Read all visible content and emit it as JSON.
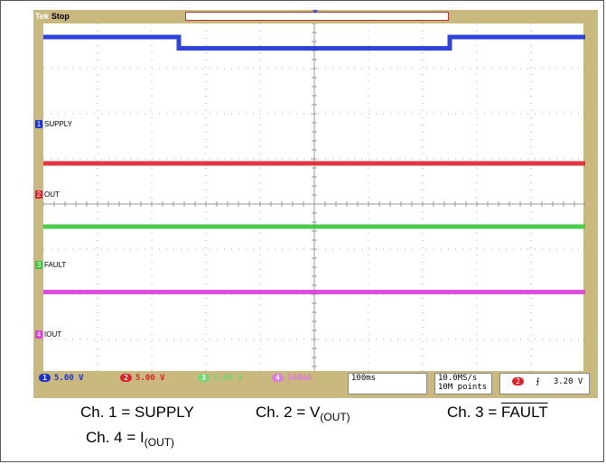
{
  "status": {
    "brand": "Tek",
    "state": "Stop"
  },
  "channels": [
    {
      "id": "1",
      "label": "SUPPLY",
      "color": "#1a2fd6",
      "scale": "5.00 V"
    },
    {
      "id": "2",
      "label": "OUT",
      "color": "#e0202a",
      "scale": "5.00 V"
    },
    {
      "id": "3",
      "label": "FAULT",
      "color": "#37c837",
      "scale": "5.00 V"
    },
    {
      "id": "4",
      "label": "IOUT",
      "color": "#d93cd9",
      "scale": "100mA"
    }
  ],
  "timebase": "100ms",
  "sample": {
    "rate": "10.0MS/s",
    "points": "10M points"
  },
  "trigger": {
    "channel": "2",
    "slope": "rising",
    "level": "3.20 V"
  },
  "captions": {
    "ch1": "Ch. 1 = SUPPLY",
    "ch2_prefix": "Ch. 2 = V",
    "ch2_sub": "(OUT)",
    "ch3_prefix": "Ch. 3 = ",
    "ch3_over": "FAULT",
    "ch4_prefix": "Ch. 4 = I",
    "ch4_sub": "(OUT)"
  },
  "chart_data": {
    "type": "line",
    "x_unit": "divisions",
    "xlim": [
      0,
      10
    ],
    "ylim": [
      0,
      8
    ],
    "grid": true,
    "series": [
      {
        "name": "SUPPLY",
        "color": "#1a2fd6",
        "points": [
          [
            0,
            7.7
          ],
          [
            2.5,
            7.7
          ],
          [
            2.5,
            7.45
          ],
          [
            7.5,
            7.45
          ],
          [
            7.5,
            7.7
          ],
          [
            10,
            7.7
          ]
        ]
      },
      {
        "name": "OUT",
        "color": "#e0202a",
        "points": [
          [
            0,
            4.9
          ],
          [
            10,
            4.9
          ]
        ]
      },
      {
        "name": "FAULT",
        "color": "#37c837",
        "points": [
          [
            0,
            3.5
          ],
          [
            10,
            3.5
          ]
        ]
      },
      {
        "name": "IOUT",
        "color": "#d93cd9",
        "points": [
          [
            0,
            2.05
          ],
          [
            10,
            2.05
          ]
        ]
      }
    ]
  }
}
